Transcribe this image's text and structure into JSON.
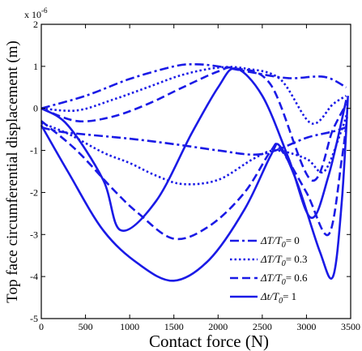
{
  "chart_data": {
    "type": "line",
    "xlabel": "Contact force (N)",
    "ylabel": "Top face circumferential displacement (m)",
    "y_multiplier_label": "x 10",
    "y_multiplier_exponent": "-6",
    "xlim": [
      0,
      3500
    ],
    "ylim": [
      -5,
      2
    ],
    "x_ticks": [
      "0",
      "500",
      "1000",
      "1500",
      "2000",
      "2500",
      "3000",
      "3500"
    ],
    "y_ticks": [
      "-5",
      "-4",
      "-3",
      "-2",
      "-1",
      "0",
      "1",
      "2"
    ],
    "grid": false,
    "legend_position": "lower-right",
    "line_color": "#1a1ae6",
    "series": [
      {
        "name": "ΔT/T0 = 0",
        "legend_prefix": "ΔT/T",
        "legend_sub": "0",
        "legend_value": "= 0",
        "style": "dashdot",
        "points": [
          [
            0,
            -0.45
          ],
          [
            200,
            -0.55
          ],
          [
            500,
            -0.62
          ],
          [
            1000,
            -0.72
          ],
          [
            1500,
            -0.85
          ],
          [
            2000,
            -1.0
          ],
          [
            2400,
            -1.1
          ],
          [
            2650,
            -1.0
          ],
          [
            3000,
            -0.7
          ],
          [
            3300,
            -0.55
          ],
          [
            3450,
            -0.45
          ]
        ],
        "upper_branch": [
          [
            0,
            0
          ],
          [
            500,
            0.3
          ],
          [
            1000,
            0.7
          ],
          [
            1500,
            1.0
          ],
          [
            1750,
            1.05
          ],
          [
            2000,
            1.0
          ],
          [
            2400,
            0.85
          ],
          [
            2800,
            0.72
          ],
          [
            3200,
            0.75
          ],
          [
            3450,
            0.5
          ]
        ]
      },
      {
        "name": "ΔT/T0 = 0.3",
        "legend_prefix": "ΔT/T",
        "legend_sub": "0",
        "legend_value": "= 0.3",
        "style": "dotted",
        "points": [
          [
            0,
            -0.35
          ],
          [
            300,
            -0.6
          ],
          [
            700,
            -1.05
          ],
          [
            1000,
            -1.3
          ],
          [
            1300,
            -1.6
          ],
          [
            1600,
            -1.8
          ],
          [
            2000,
            -1.7
          ],
          [
            2400,
            -1.2
          ],
          [
            2650,
            -1.0
          ],
          [
            3000,
            -1.2
          ],
          [
            3200,
            -1.5
          ],
          [
            3400,
            -0.5
          ],
          [
            3460,
            -0.1
          ]
        ],
        "upper_branch": [
          [
            0,
            0
          ],
          [
            400,
            -0.05
          ],
          [
            800,
            0.2
          ],
          [
            1200,
            0.5
          ],
          [
            1600,
            0.8
          ],
          [
            2000,
            0.97
          ],
          [
            2300,
            0.95
          ],
          [
            2700,
            0.7
          ],
          [
            3050,
            -0.35
          ],
          [
            3300,
            0.1
          ],
          [
            3450,
            0.3
          ]
        ]
      },
      {
        "name": "ΔT/T0 = 0.6",
        "legend_prefix": "ΔT/T",
        "legend_sub": "0",
        "legend_value": "= 0.6",
        "style": "dashed",
        "points": [
          [
            0,
            -0.3
          ],
          [
            400,
            -1.0
          ],
          [
            800,
            -1.9
          ],
          [
            1100,
            -2.5
          ],
          [
            1500,
            -3.1
          ],
          [
            1900,
            -2.8
          ],
          [
            2300,
            -2.0
          ],
          [
            2600,
            -1.0
          ],
          [
            2700,
            -0.95
          ],
          [
            3000,
            -2.0
          ],
          [
            3250,
            -3.0
          ],
          [
            3400,
            -1.2
          ],
          [
            3460,
            -0.2
          ]
        ],
        "upper_branch": [
          [
            0,
            0
          ],
          [
            400,
            -0.3
          ],
          [
            800,
            -0.2
          ],
          [
            1200,
            0.1
          ],
          [
            1600,
            0.5
          ],
          [
            2000,
            0.88
          ],
          [
            2200,
            0.95
          ],
          [
            2600,
            0.55
          ],
          [
            3050,
            -1.7
          ],
          [
            3300,
            -0.5
          ],
          [
            3450,
            0.1
          ]
        ]
      },
      {
        "name": "Δt/T0 = 1",
        "legend_prefix": "Δt/T",
        "legend_sub": "0",
        "legend_value": "= 1",
        "style": "solid",
        "points": [
          [
            0,
            -0.4
          ],
          [
            300,
            -1.5
          ],
          [
            700,
            -2.9
          ],
          [
            1100,
            -3.7
          ],
          [
            1500,
            -4.1
          ],
          [
            1900,
            -3.6
          ],
          [
            2300,
            -2.4
          ],
          [
            2600,
            -1.1
          ],
          [
            2700,
            -0.9
          ],
          [
            2900,
            -1.8
          ],
          [
            3150,
            -3.4
          ],
          [
            3300,
            -4.0
          ],
          [
            3400,
            -2.2
          ],
          [
            3470,
            0.3
          ]
        ],
        "upper_branch": [
          [
            0,
            0
          ],
          [
            300,
            -0.4
          ],
          [
            700,
            -1.7
          ],
          [
            900,
            -2.9
          ],
          [
            1300,
            -2.2
          ],
          [
            1700,
            -0.6
          ],
          [
            2000,
            0.5
          ],
          [
            2200,
            0.95
          ],
          [
            2500,
            0.3
          ],
          [
            2800,
            -1.2
          ],
          [
            3050,
            -2.6
          ],
          [
            3250,
            -1.6
          ],
          [
            3450,
            0.2
          ]
        ]
      }
    ]
  }
}
